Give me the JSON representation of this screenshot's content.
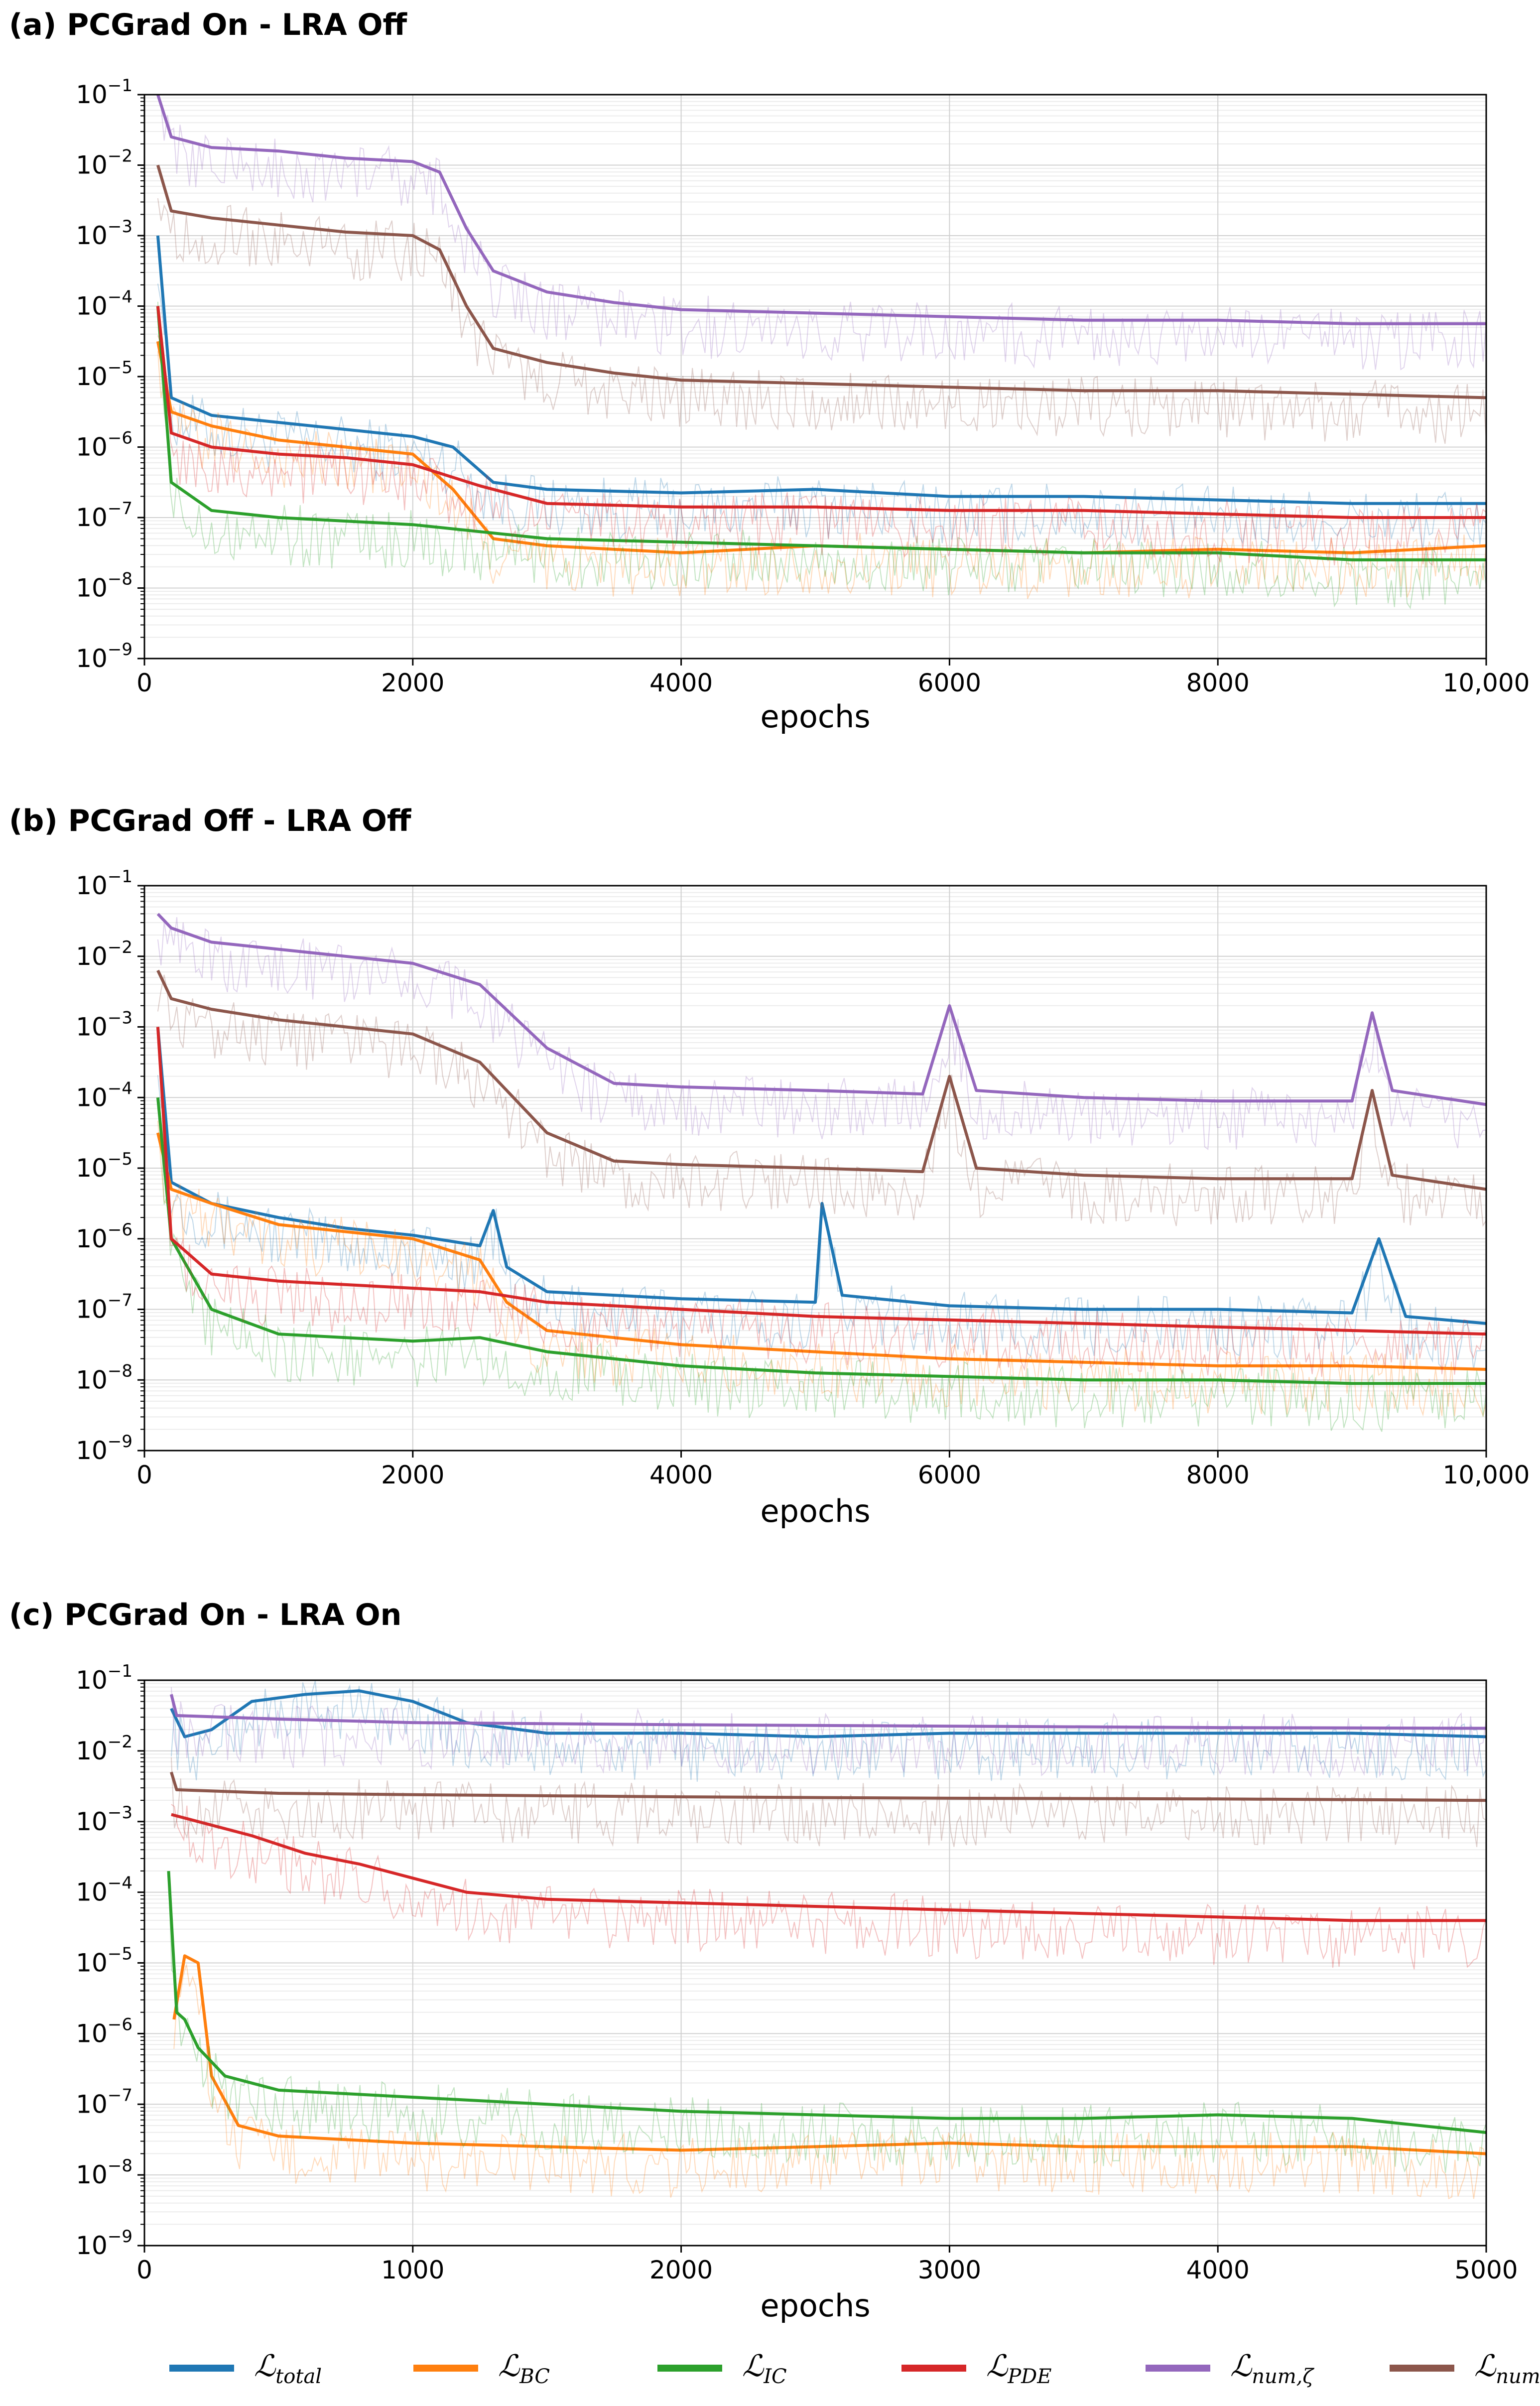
{
  "figure": {
    "x_label": "epochs",
    "legend": [
      {
        "key": "total",
        "symbol": "ℒ",
        "subscript": "total",
        "color": "#1f77b4"
      },
      {
        "key": "bc",
        "symbol": "ℒ",
        "subscript": "BC",
        "color": "#ff7f0e"
      },
      {
        "key": "ic",
        "symbol": "ℒ",
        "subscript": "IC",
        "color": "#2ca02c"
      },
      {
        "key": "pde",
        "symbol": "ℒ",
        "subscript": "PDE",
        "color": "#d62728"
      },
      {
        "key": "num_zeta",
        "symbol": "ℒ",
        "subscript": "num,ζ",
        "color": "#9467bd"
      },
      {
        "key": "num_u",
        "symbol": "ℒ",
        "subscript": "num,u",
        "color": "#8c564b"
      }
    ]
  },
  "chart_data": [
    {
      "type": "line",
      "title": "(a) PCGrad On - LRA Off",
      "xlabel": "epochs",
      "ylabel": "",
      "yscale": "log",
      "xlim": [
        0,
        10000
      ],
      "ylim_exp": [
        -9,
        -1
      ],
      "x_ticks": [
        {
          "value": 0,
          "label": "0"
        },
        {
          "value": 2000,
          "label": "2000"
        },
        {
          "value": 4000,
          "label": "4000"
        },
        {
          "value": 6000,
          "label": "6000"
        },
        {
          "value": 8000,
          "label": "8000"
        },
        {
          "value": 10000,
          "label": "10,000"
        }
      ],
      "y_tick_exponents": [
        "-1",
        "-2",
        "-3",
        "-4",
        "-5",
        "-6",
        "-7",
        "-8",
        "-9"
      ],
      "series": [
        {
          "name": "total",
          "color": "#1f77b4",
          "x": [
            100,
            200,
            500,
            1000,
            1500,
            2000,
            2300,
            2600,
            3000,
            4000,
            5000,
            6000,
            7000,
            8000,
            9000,
            10000
          ],
          "log10": [
            -3.0,
            -5.3,
            -5.55,
            -5.65,
            -5.75,
            -5.85,
            -6.0,
            -6.5,
            -6.6,
            -6.65,
            -6.6,
            -6.7,
            -6.7,
            -6.75,
            -6.8,
            -6.8
          ]
        },
        {
          "name": "BC",
          "color": "#ff7f0e",
          "x": [
            100,
            200,
            500,
            1000,
            1500,
            2000,
            2300,
            2600,
            3000,
            4000,
            5000,
            6000,
            7000,
            8000,
            9000,
            10000
          ],
          "log10": [
            -4.5,
            -5.5,
            -5.7,
            -5.9,
            -6.0,
            -6.1,
            -6.6,
            -7.3,
            -7.4,
            -7.5,
            -7.4,
            -7.45,
            -7.5,
            -7.45,
            -7.5,
            -7.4
          ]
        },
        {
          "name": "IC",
          "color": "#2ca02c",
          "x": [
            100,
            200,
            500,
            1000,
            1500,
            2000,
            2500,
            3000,
            4000,
            5000,
            6000,
            7000,
            8000,
            9000,
            10000
          ],
          "log10": [
            -4.0,
            -6.5,
            -6.9,
            -7.0,
            -7.05,
            -7.1,
            -7.2,
            -7.3,
            -7.35,
            -7.4,
            -7.45,
            -7.5,
            -7.5,
            -7.6,
            -7.6
          ]
        },
        {
          "name": "PDE",
          "color": "#d62728",
          "x": [
            100,
            200,
            500,
            1000,
            1500,
            2000,
            2500,
            3000,
            4000,
            5000,
            6000,
            7000,
            8000,
            9000,
            10000
          ],
          "log10": [
            -4.0,
            -5.8,
            -6.0,
            -6.1,
            -6.15,
            -6.25,
            -6.55,
            -6.8,
            -6.85,
            -6.85,
            -6.9,
            -6.9,
            -6.95,
            -7.0,
            -7.0
          ]
        },
        {
          "name": "num,ζ",
          "color": "#9467bd",
          "x": [
            100,
            200,
            500,
            1000,
            1500,
            2000,
            2200,
            2400,
            2600,
            3000,
            3500,
            4000,
            5000,
            6000,
            7000,
            8000,
            9000,
            10000
          ],
          "log10": [
            -1.0,
            -1.6,
            -1.75,
            -1.8,
            -1.9,
            -1.95,
            -2.1,
            -2.9,
            -3.5,
            -3.8,
            -3.95,
            -4.05,
            -4.1,
            -4.15,
            -4.2,
            -4.2,
            -4.25,
            -4.25
          ]
        },
        {
          "name": "num,u",
          "color": "#8c564b",
          "x": [
            100,
            200,
            500,
            1000,
            1500,
            2000,
            2200,
            2400,
            2600,
            3000,
            3500,
            4000,
            5000,
            6000,
            7000,
            8000,
            9000,
            10000
          ],
          "log10": [
            -2.0,
            -2.65,
            -2.75,
            -2.85,
            -2.95,
            -3.0,
            -3.2,
            -4.0,
            -4.6,
            -4.8,
            -4.95,
            -5.05,
            -5.1,
            -5.15,
            -5.2,
            -5.2,
            -5.25,
            -5.3
          ]
        }
      ]
    },
    {
      "type": "line",
      "title": "(b) PCGrad Off - LRA Off",
      "xlabel": "epochs",
      "ylabel": "",
      "yscale": "log",
      "xlim": [
        0,
        10000
      ],
      "ylim_exp": [
        -9,
        -1
      ],
      "x_ticks": [
        {
          "value": 0,
          "label": "0"
        },
        {
          "value": 2000,
          "label": "2000"
        },
        {
          "value": 4000,
          "label": "4000"
        },
        {
          "value": 6000,
          "label": "6000"
        },
        {
          "value": 8000,
          "label": "8000"
        },
        {
          "value": 10000,
          "label": "10,000"
        }
      ],
      "y_tick_exponents": [
        "-1",
        "-2",
        "-3",
        "-4",
        "-5",
        "-6",
        "-7",
        "-8",
        "-9"
      ],
      "series": [
        {
          "name": "total",
          "color": "#1f77b4",
          "x": [
            100,
            200,
            500,
            1000,
            1500,
            2000,
            2500,
            2600,
            2700,
            3000,
            4000,
            5000,
            5050,
            5200,
            6000,
            7000,
            8000,
            9000,
            9200,
            9400,
            10000
          ],
          "log10": [
            -3.0,
            -5.2,
            -5.5,
            -5.7,
            -5.85,
            -5.95,
            -6.1,
            -5.6,
            -6.4,
            -6.75,
            -6.85,
            -6.9,
            -5.5,
            -6.8,
            -6.95,
            -7.0,
            -7.0,
            -7.05,
            -6.0,
            -7.1,
            -7.2
          ]
        },
        {
          "name": "BC",
          "color": "#ff7f0e",
          "x": [
            100,
            200,
            500,
            1000,
            1500,
            2000,
            2500,
            2700,
            3000,
            4000,
            5000,
            6000,
            7000,
            8000,
            9000,
            10000
          ],
          "log10": [
            -4.5,
            -5.3,
            -5.5,
            -5.8,
            -5.9,
            -6.0,
            -6.3,
            -6.9,
            -7.3,
            -7.5,
            -7.6,
            -7.7,
            -7.75,
            -7.8,
            -7.8,
            -7.85
          ]
        },
        {
          "name": "IC",
          "color": "#2ca02c",
          "x": [
            100,
            200,
            500,
            1000,
            1500,
            2000,
            2500,
            3000,
            4000,
            5000,
            6000,
            7000,
            8000,
            9000,
            10000
          ],
          "log10": [
            -4.0,
            -6.0,
            -7.0,
            -7.35,
            -7.4,
            -7.45,
            -7.4,
            -7.6,
            -7.8,
            -7.9,
            -7.95,
            -8.0,
            -8.0,
            -8.05,
            -8.05
          ]
        },
        {
          "name": "PDE",
          "color": "#d62728",
          "x": [
            100,
            200,
            500,
            1000,
            1500,
            2000,
            2500,
            3000,
            4000,
            5000,
            6000,
            7000,
            8000,
            9000,
            10000
          ],
          "log10": [
            -3.0,
            -6.0,
            -6.5,
            -6.6,
            -6.65,
            -6.7,
            -6.75,
            -6.9,
            -7.0,
            -7.1,
            -7.15,
            -7.2,
            -7.25,
            -7.3,
            -7.35
          ]
        },
        {
          "name": "num,ζ",
          "color": "#9467bd",
          "x": [
            100,
            200,
            500,
            1000,
            1500,
            2000,
            2500,
            3000,
            3500,
            4000,
            5000,
            5800,
            6000,
            6200,
            7000,
            8000,
            9000,
            9150,
            9300,
            10000
          ],
          "log10": [
            -1.4,
            -1.6,
            -1.8,
            -1.9,
            -2.0,
            -2.1,
            -2.4,
            -3.3,
            -3.8,
            -3.85,
            -3.9,
            -3.95,
            -2.7,
            -3.9,
            -4.0,
            -4.05,
            -4.05,
            -2.8,
            -3.9,
            -4.1
          ]
        },
        {
          "name": "num,u",
          "color": "#8c564b",
          "x": [
            100,
            200,
            500,
            1000,
            1500,
            2000,
            2500,
            3000,
            3500,
            4000,
            5000,
            5800,
            6000,
            6200,
            7000,
            8000,
            9000,
            9150,
            9300,
            10000
          ],
          "log10": [
            -2.2,
            -2.6,
            -2.75,
            -2.9,
            -3.0,
            -3.1,
            -3.5,
            -4.5,
            -4.9,
            -4.95,
            -5.0,
            -5.05,
            -3.7,
            -5.0,
            -5.1,
            -5.15,
            -5.15,
            -3.9,
            -5.1,
            -5.3
          ]
        }
      ]
    },
    {
      "type": "line",
      "title": "(c) PCGrad On - LRA On",
      "xlabel": "epochs",
      "ylabel": "",
      "yscale": "log",
      "xlim": [
        0,
        5000
      ],
      "ylim_exp": [
        -9,
        -1
      ],
      "x_ticks": [
        {
          "value": 0,
          "label": "0"
        },
        {
          "value": 1000,
          "label": "1000"
        },
        {
          "value": 2000,
          "label": "2000"
        },
        {
          "value": 3000,
          "label": "3000"
        },
        {
          "value": 4000,
          "label": "4000"
        },
        {
          "value": 5000,
          "label": "5000"
        }
      ],
      "y_tick_exponents": [
        "-1",
        "-2",
        "-3",
        "-4",
        "-5",
        "-6",
        "-7",
        "-8",
        "-9"
      ],
      "series": [
        {
          "name": "total",
          "color": "#1f77b4",
          "x": [
            100,
            150,
            250,
            400,
            600,
            800,
            1000,
            1200,
            1500,
            2000,
            2500,
            3000,
            3500,
            4000,
            4500,
            5000
          ],
          "log10": [
            -1.4,
            -1.8,
            -1.7,
            -1.3,
            -1.2,
            -1.15,
            -1.3,
            -1.6,
            -1.75,
            -1.75,
            -1.8,
            -1.75,
            -1.75,
            -1.75,
            -1.75,
            -1.8
          ]
        },
        {
          "name": "BC",
          "color": "#ff7f0e",
          "x": [
            110,
            150,
            200,
            250,
            350,
            500,
            1000,
            1500,
            2000,
            2500,
            3000,
            3500,
            4000,
            4500,
            5000
          ],
          "log10": [
            -5.8,
            -4.9,
            -5.0,
            -6.6,
            -7.3,
            -7.45,
            -7.55,
            -7.6,
            -7.65,
            -7.6,
            -7.55,
            -7.6,
            -7.6,
            -7.6,
            -7.7
          ]
        },
        {
          "name": "IC",
          "color": "#2ca02c",
          "x": [
            90,
            120,
            150,
            200,
            300,
            500,
            1000,
            1500,
            2000,
            2500,
            3000,
            3500,
            4000,
            4500,
            5000
          ],
          "log10": [
            -3.7,
            -5.7,
            -5.8,
            -6.2,
            -6.6,
            -6.8,
            -6.9,
            -7.0,
            -7.1,
            -7.15,
            -7.2,
            -7.2,
            -7.15,
            -7.2,
            -7.4
          ]
        },
        {
          "name": "PDE",
          "color": "#d62728",
          "x": [
            100,
            200,
            400,
            600,
            800,
            1000,
            1200,
            1500,
            2000,
            2500,
            3000,
            3500,
            4000,
            4500,
            5000
          ],
          "log10": [
            -2.9,
            -3.0,
            -3.2,
            -3.45,
            -3.6,
            -3.8,
            -4.0,
            -4.1,
            -4.15,
            -4.2,
            -4.25,
            -4.3,
            -4.35,
            -4.4,
            -4.4
          ]
        },
        {
          "name": "num,ζ",
          "color": "#9467bd",
          "x": [
            100,
            120,
            500,
            1000,
            2000,
            3000,
            4000,
            5000
          ],
          "log10": [
            -1.2,
            -1.5,
            -1.55,
            -1.6,
            -1.63,
            -1.65,
            -1.67,
            -1.68
          ]
        },
        {
          "name": "num,u",
          "color": "#8c564b",
          "x": [
            100,
            120,
            500,
            1000,
            2000,
            3000,
            4000,
            5000
          ],
          "log10": [
            -2.3,
            -2.55,
            -2.6,
            -2.62,
            -2.65,
            -2.67,
            -2.68,
            -2.7
          ]
        }
      ]
    }
  ]
}
